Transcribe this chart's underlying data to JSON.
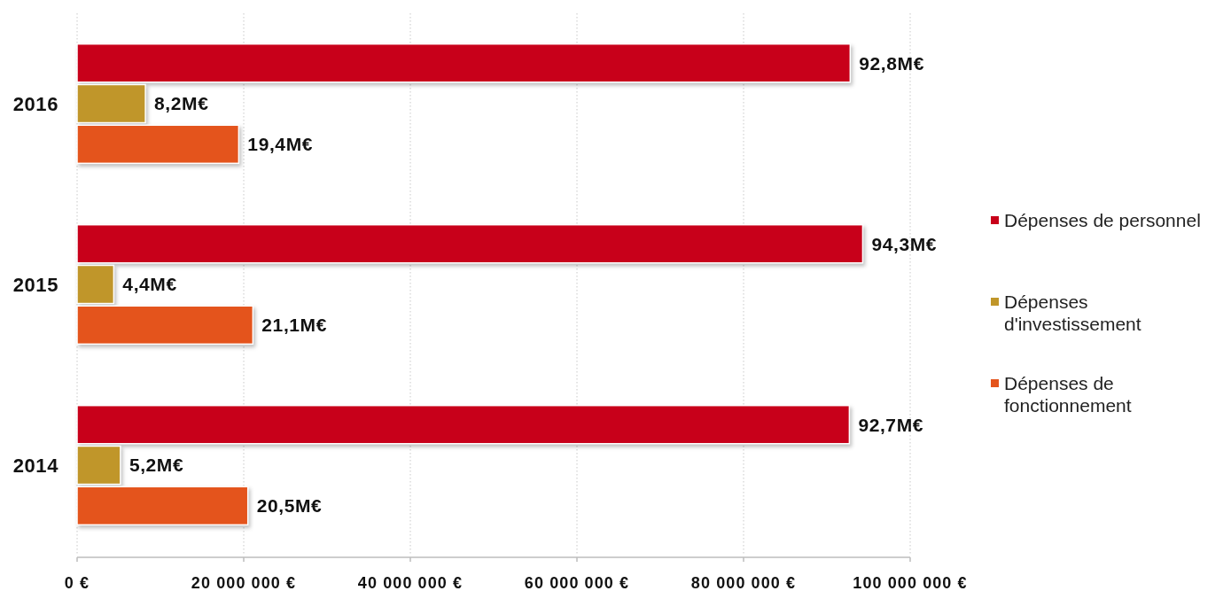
{
  "chart_data": {
    "type": "bar",
    "orientation": "horizontal",
    "categories": [
      "2016",
      "2015",
      "2014"
    ],
    "series": [
      {
        "name": "Dépenses de personnel",
        "color": "#c8001a",
        "values": [
          92800000,
          94300000,
          92700000
        ],
        "value_labels": [
          "92,8M€",
          "94,3M€",
          "92,7M€"
        ]
      },
      {
        "name": "Dépenses d'investissement",
        "color": "#c0962a",
        "values": [
          8200000,
          4400000,
          5200000
        ],
        "value_labels": [
          "8,2M€",
          "4,4M€",
          "5,2M€"
        ]
      },
      {
        "name": "Dépenses de fonctionnement",
        "color": "#e4541c",
        "values": [
          19400000,
          21100000,
          20500000
        ],
        "value_labels": [
          "19,4M€",
          "21,1M€",
          "20,5M€"
        ]
      }
    ],
    "xlim": [
      0,
      100000000
    ],
    "xticks": [
      {
        "value": 0,
        "label": "0 €"
      },
      {
        "value": 20000000,
        "label": "20 000 000 €"
      },
      {
        "value": 40000000,
        "label": "40 000 000 €"
      },
      {
        "value": 60000000,
        "label": "60 000 000 €"
      },
      {
        "value": 80000000,
        "label": "80 000 000 €"
      },
      {
        "value": 100000000,
        "label": "100 000 000 €"
      }
    ],
    "grid": "x",
    "legend": "right"
  }
}
